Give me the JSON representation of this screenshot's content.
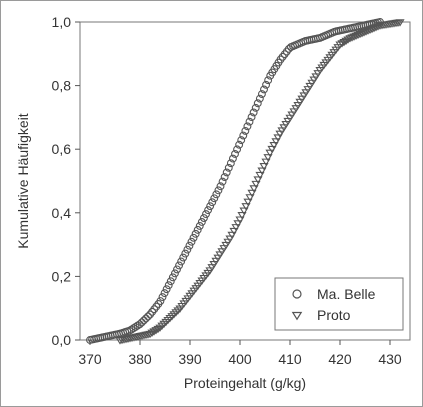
{
  "chart_data": {
    "type": "scatter",
    "title": "",
    "xlabel": "Proteingehalt (g/kg)",
    "ylabel": "Kumulative Häufigkeit",
    "xlim": [
      368,
      434
    ],
    "ylim": [
      0,
      1.0
    ],
    "x_ticks": [
      370,
      380,
      390,
      400,
      410,
      420,
      430
    ],
    "x_tick_labels": [
      "370",
      "380",
      "390",
      "400",
      "410",
      "420",
      "430"
    ],
    "y_ticks": [
      0,
      0.2,
      0.4,
      0.6,
      0.8,
      1.0
    ],
    "y_tick_labels": [
      "0,0",
      "0,2",
      "0,4",
      "0,6",
      "0,8",
      "1,0"
    ],
    "grid": false,
    "legend_position": "bottom-right",
    "series": [
      {
        "name": "Ma. Belle",
        "marker": "circle",
        "color": "#555555",
        "cdf_knots": [
          [
            370,
            0.0
          ],
          [
            373,
            0.01
          ],
          [
            376,
            0.02
          ],
          [
            378,
            0.03
          ],
          [
            380,
            0.05
          ],
          [
            382,
            0.08
          ],
          [
            384,
            0.12
          ],
          [
            386,
            0.18
          ],
          [
            388,
            0.24
          ],
          [
            390,
            0.3
          ],
          [
            392,
            0.36
          ],
          [
            394,
            0.42
          ],
          [
            396,
            0.48
          ],
          [
            398,
            0.55
          ],
          [
            400,
            0.62
          ],
          [
            402,
            0.69
          ],
          [
            404,
            0.76
          ],
          [
            406,
            0.83
          ],
          [
            408,
            0.88
          ],
          [
            410,
            0.92
          ],
          [
            413,
            0.94
          ],
          [
            416,
            0.95
          ],
          [
            419,
            0.97
          ],
          [
            422,
            0.98
          ],
          [
            425,
            0.99
          ],
          [
            428,
            1.0
          ]
        ]
      },
      {
        "name": "Proto",
        "marker": "triangle-down",
        "color": "#555555",
        "cdf_knots": [
          [
            376,
            0.0
          ],
          [
            379,
            0.01
          ],
          [
            382,
            0.02
          ],
          [
            384,
            0.04
          ],
          [
            386,
            0.07
          ],
          [
            388,
            0.1
          ],
          [
            390,
            0.14
          ],
          [
            392,
            0.18
          ],
          [
            394,
            0.22
          ],
          [
            396,
            0.27
          ],
          [
            398,
            0.32
          ],
          [
            400,
            0.38
          ],
          [
            402,
            0.45
          ],
          [
            404,
            0.52
          ],
          [
            406,
            0.59
          ],
          [
            408,
            0.65
          ],
          [
            410,
            0.7
          ],
          [
            412,
            0.75
          ],
          [
            414,
            0.8
          ],
          [
            416,
            0.85
          ],
          [
            418,
            0.89
          ],
          [
            420,
            0.93
          ],
          [
            422,
            0.95
          ],
          [
            425,
            0.97
          ],
          [
            428,
            0.99
          ],
          [
            432,
            1.0
          ]
        ]
      }
    ]
  }
}
